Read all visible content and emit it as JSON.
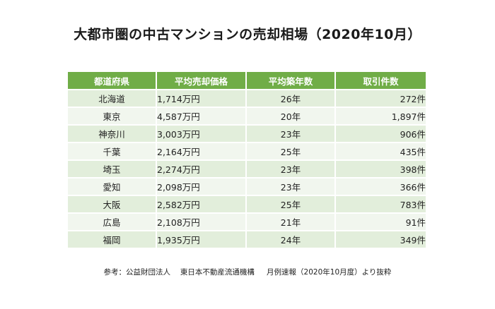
{
  "title": "大都市圏の中古マンションの売却相場（2020年10月）",
  "table": {
    "headers": [
      "都道府県",
      "平均売却価格",
      "平均築年数",
      "取引件数"
    ],
    "rows": [
      {
        "region": "北海道",
        "price": "1,714万円",
        "age": "26年",
        "count": "272件"
      },
      {
        "region": "東京",
        "price": "4,587万円",
        "age": "20年",
        "count": "1,897件"
      },
      {
        "region": "神奈川",
        "price": "3,003万円",
        "age": "23年",
        "count": "906件"
      },
      {
        "region": "千葉",
        "price": "2,164万円",
        "age": "25年",
        "count": "435件"
      },
      {
        "region": "埼玉",
        "price": "2,274万円",
        "age": "23年",
        "count": "398件"
      },
      {
        "region": "愛知",
        "price": "2,098万円",
        "age": "23年",
        "count": "366件"
      },
      {
        "region": "大阪",
        "price": "2,582万円",
        "age": "25年",
        "count": "783件"
      },
      {
        "region": "広島",
        "price": "2,108万円",
        "age": "21年",
        "count": "91件"
      },
      {
        "region": "福岡",
        "price": "1,935万円",
        "age": "24年",
        "count": "349件"
      }
    ]
  },
  "note": "参考：公益財団法人　 東日本不動産流通機構 　 月例速報（2020年10月度）より抜粋",
  "colors": {
    "header_bg": "#70ad47",
    "row_odd_bg": "#e2eedb",
    "row_even_bg": "#f1f6ee"
  }
}
